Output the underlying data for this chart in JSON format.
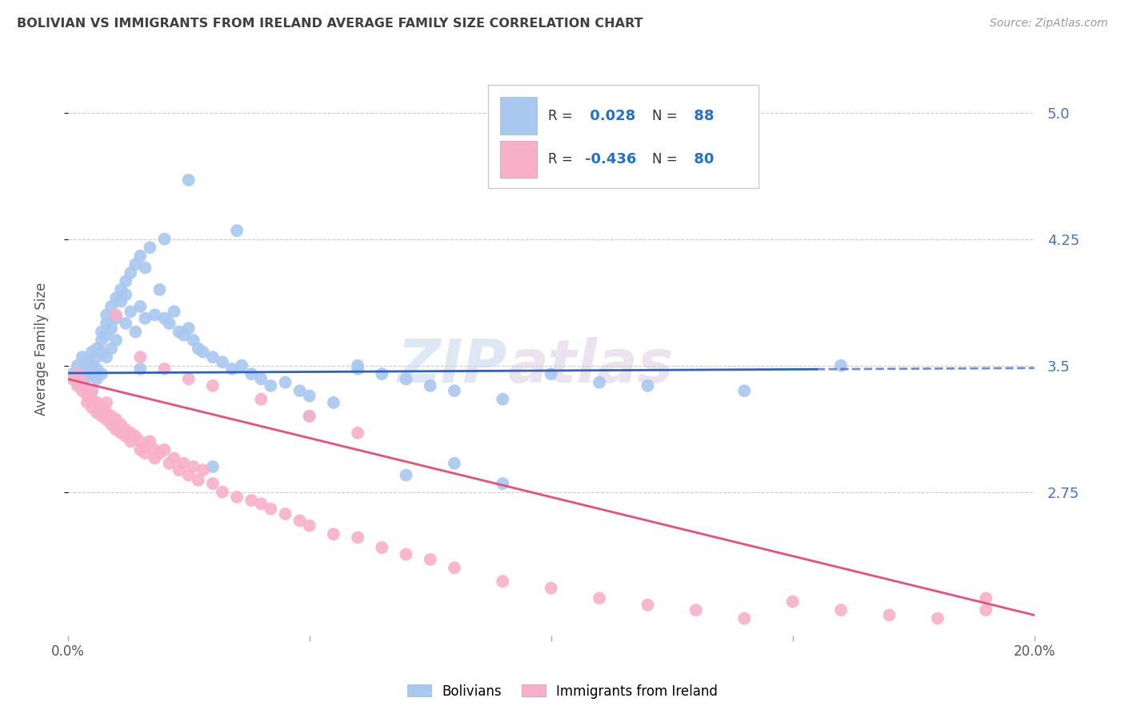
{
  "title": "BOLIVIAN VS IMMIGRANTS FROM IRELAND AVERAGE FAMILY SIZE CORRELATION CHART",
  "source": "Source: ZipAtlas.com",
  "ylabel": "Average Family Size",
  "xlim": [
    0.0,
    0.2
  ],
  "ylim": [
    1.9,
    5.3
  ],
  "yticks": [
    2.75,
    3.5,
    4.25,
    5.0
  ],
  "xticks": [
    0.0,
    0.05,
    0.1,
    0.15,
    0.2
  ],
  "xticklabels": [
    "0.0%",
    "",
    "",
    "",
    "20.0%"
  ],
  "blue_color": "#a8c8f0",
  "pink_color": "#f8b0c8",
  "blue_line_color": "#3060c0",
  "pink_line_color": "#e8507a",
  "blue_R": 0.028,
  "blue_N": 88,
  "pink_R": -0.436,
  "pink_N": 80,
  "legend_label1": "Bolivians",
  "legend_label2": "Immigrants from Ireland",
  "watermark_zip": "ZIP",
  "watermark_atlas": "atlas",
  "background_color": "#ffffff",
  "grid_color": "#cccccc",
  "title_color": "#404040",
  "right_axis_color": "#4472c4",
  "blue_scatter_x": [
    0.001,
    0.002,
    0.002,
    0.003,
    0.003,
    0.003,
    0.004,
    0.004,
    0.004,
    0.005,
    0.005,
    0.005,
    0.005,
    0.006,
    0.006,
    0.006,
    0.006,
    0.007,
    0.007,
    0.007,
    0.007,
    0.008,
    0.008,
    0.008,
    0.008,
    0.009,
    0.009,
    0.009,
    0.01,
    0.01,
    0.01,
    0.011,
    0.011,
    0.012,
    0.012,
    0.012,
    0.013,
    0.013,
    0.014,
    0.014,
    0.015,
    0.015,
    0.016,
    0.016,
    0.017,
    0.018,
    0.019,
    0.02,
    0.021,
    0.022,
    0.023,
    0.024,
    0.025,
    0.026,
    0.027,
    0.028,
    0.03,
    0.032,
    0.034,
    0.036,
    0.038,
    0.04,
    0.042,
    0.045,
    0.048,
    0.05,
    0.055,
    0.06,
    0.065,
    0.07,
    0.075,
    0.08,
    0.09,
    0.1,
    0.11,
    0.12,
    0.14,
    0.16,
    0.03,
    0.05,
    0.07,
    0.08,
    0.025,
    0.035,
    0.02,
    0.015,
    0.06,
    0.09
  ],
  "blue_scatter_y": [
    3.45,
    3.4,
    3.5,
    3.42,
    3.55,
    3.38,
    3.48,
    3.52,
    3.43,
    3.46,
    3.5,
    3.58,
    3.35,
    3.6,
    3.55,
    3.48,
    3.42,
    3.65,
    3.7,
    3.58,
    3.45,
    3.75,
    3.68,
    3.8,
    3.55,
    3.72,
    3.85,
    3.6,
    3.78,
    3.9,
    3.65,
    3.88,
    3.95,
    3.92,
    4.0,
    3.75,
    4.05,
    3.82,
    4.1,
    3.7,
    4.15,
    3.85,
    4.08,
    3.78,
    4.2,
    3.8,
    3.95,
    3.78,
    3.75,
    3.82,
    3.7,
    3.68,
    3.72,
    3.65,
    3.6,
    3.58,
    3.55,
    3.52,
    3.48,
    3.5,
    3.45,
    3.42,
    3.38,
    3.4,
    3.35,
    3.32,
    3.28,
    3.48,
    3.45,
    3.42,
    3.38,
    3.35,
    3.3,
    3.45,
    3.4,
    3.38,
    3.35,
    3.5,
    2.9,
    3.2,
    2.85,
    2.92,
    4.6,
    4.3,
    4.25,
    3.48,
    3.5,
    2.8
  ],
  "pink_scatter_x": [
    0.001,
    0.002,
    0.002,
    0.003,
    0.003,
    0.004,
    0.004,
    0.005,
    0.005,
    0.005,
    0.006,
    0.006,
    0.007,
    0.007,
    0.008,
    0.008,
    0.008,
    0.009,
    0.009,
    0.01,
    0.01,
    0.011,
    0.011,
    0.012,
    0.012,
    0.013,
    0.013,
    0.014,
    0.015,
    0.015,
    0.016,
    0.016,
    0.017,
    0.018,
    0.018,
    0.019,
    0.02,
    0.021,
    0.022,
    0.023,
    0.024,
    0.025,
    0.026,
    0.027,
    0.028,
    0.03,
    0.032,
    0.035,
    0.038,
    0.04,
    0.042,
    0.045,
    0.048,
    0.05,
    0.055,
    0.06,
    0.065,
    0.07,
    0.075,
    0.08,
    0.09,
    0.1,
    0.11,
    0.12,
    0.13,
    0.14,
    0.15,
    0.16,
    0.17,
    0.18,
    0.19,
    0.01,
    0.015,
    0.02,
    0.025,
    0.03,
    0.04,
    0.05,
    0.06,
    0.19
  ],
  "pink_scatter_y": [
    3.42,
    3.38,
    3.45,
    3.35,
    3.4,
    3.32,
    3.28,
    3.35,
    3.25,
    3.3,
    3.22,
    3.28,
    3.2,
    3.25,
    3.18,
    3.22,
    3.28,
    3.15,
    3.2,
    3.12,
    3.18,
    3.1,
    3.15,
    3.08,
    3.12,
    3.05,
    3.1,
    3.08,
    3.05,
    3.0,
    3.02,
    2.98,
    3.05,
    3.0,
    2.95,
    2.98,
    3.0,
    2.92,
    2.95,
    2.88,
    2.92,
    2.85,
    2.9,
    2.82,
    2.88,
    2.8,
    2.75,
    2.72,
    2.7,
    2.68,
    2.65,
    2.62,
    2.58,
    2.55,
    2.5,
    2.48,
    2.42,
    2.38,
    2.35,
    2.3,
    2.22,
    2.18,
    2.12,
    2.08,
    2.05,
    2.0,
    2.1,
    2.05,
    2.02,
    2.0,
    2.05,
    3.8,
    3.55,
    3.48,
    3.42,
    3.38,
    3.3,
    3.2,
    3.1,
    2.12
  ]
}
